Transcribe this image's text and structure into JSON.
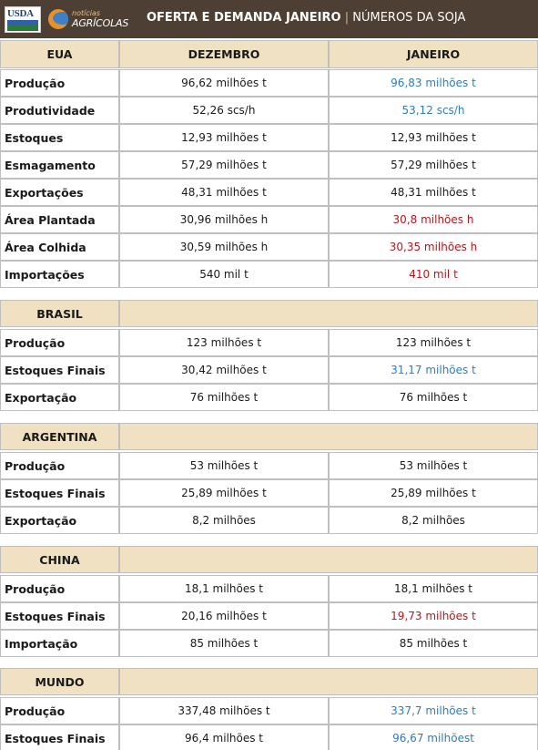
{
  "header": {
    "usda_logo": "USDA",
    "na_logo_small": "notícias",
    "na_logo_big": "AGRÍCOLAS",
    "title_bold": "OFERTA E DEMANDA JANEIRO",
    "title_sep": "|",
    "title_light": "NÚMEROS DA SOJA"
  },
  "columns": {
    "region": "EUA",
    "dec": "DEZEMBRO",
    "jan": "JANEIRO"
  },
  "sections": [
    {
      "name": "EUA",
      "rows": [
        {
          "label": "Produção",
          "dec": "96,62 milhões t",
          "jan": "96,83 milhões t",
          "jan_color": "blue"
        },
        {
          "label": "Produtividade",
          "dec": "52,26 scs/h",
          "jan": "53,12 scs/h",
          "jan_color": "blue"
        },
        {
          "label": "Estoques",
          "dec": "12,93 milhões t",
          "jan": "12,93 milhões t",
          "jan_color": "black"
        },
        {
          "label": "Esmagamento",
          "dec": "57,29 milhões t",
          "jan": "57,29 milhões t",
          "jan_color": "black"
        },
        {
          "label": "Exportações",
          "dec": "48,31 milhões t",
          "jan": "48,31 milhões t",
          "jan_color": "black"
        },
        {
          "label": "Área Plantada",
          "dec": "30,96 milhões h",
          "jan": "30,8 milhões h",
          "jan_color": "red"
        },
        {
          "label": "Área Colhida",
          "dec": "30,59 milhões h",
          "jan": "30,35 milhões h",
          "jan_color": "red"
        },
        {
          "label": "Importações",
          "dec": "540 mil t",
          "jan": "410 mil t",
          "jan_color": "red"
        }
      ]
    },
    {
      "name": "BRASIL",
      "rows": [
        {
          "label": "Produção",
          "dec": "123 milhões t",
          "jan": "123 milhões t",
          "jan_color": "black"
        },
        {
          "label": "Estoques Finais",
          "dec": "30,42 milhões t",
          "jan": "31,17 milhões t",
          "jan_color": "blue"
        },
        {
          "label": "Exportação",
          "dec": "76 milhões t",
          "jan": "76 milhões t",
          "jan_color": "black"
        }
      ]
    },
    {
      "name": "ARGENTINA",
      "rows": [
        {
          "label": "Produção",
          "dec": "53 milhões t",
          "jan": "53 milhões t",
          "jan_color": "black"
        },
        {
          "label": "Estoques Finais",
          "dec": "25,89 milhões t",
          "jan": "25,89 milhões t",
          "jan_color": "black"
        },
        {
          "label": "Exportação",
          "dec": "8,2 milhões",
          "jan": "8,2 milhões",
          "jan_color": "black"
        }
      ]
    },
    {
      "name": "CHINA",
      "rows": [
        {
          "label": "Produção",
          "dec": "18,1 milhões t",
          "jan": "18,1 milhões t",
          "jan_color": "black"
        },
        {
          "label": "Estoques Finais",
          "dec": "20,16 milhões t",
          "jan": "19,73 milhões t",
          "jan_color": "red"
        },
        {
          "label": "Importação",
          "dec": "85 milhões t",
          "jan": "85 milhões t",
          "jan_color": "black"
        }
      ]
    },
    {
      "name": "MUNDO",
      "rows": [
        {
          "label": "Produção",
          "dec": "337,48 milhões t",
          "jan": "337,7 milhões t",
          "jan_color": "blue"
        },
        {
          "label": "Estoques Finais",
          "dec": "96,4 milhões t",
          "jan": "96,67 milhõest",
          "jan_color": "blue"
        }
      ]
    }
  ]
}
